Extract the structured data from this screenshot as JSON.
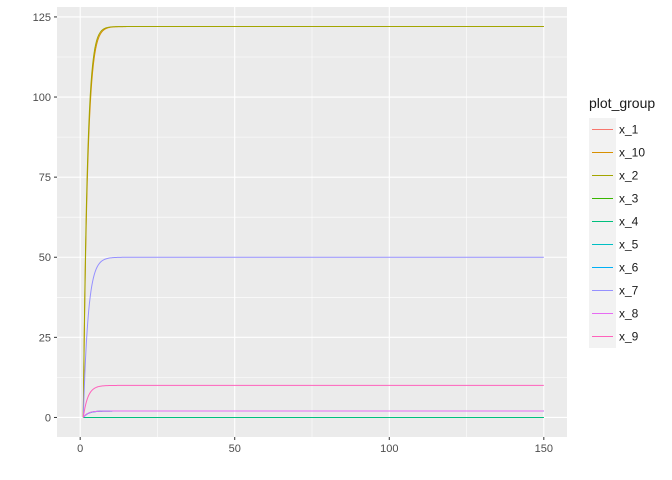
{
  "chart_data": {
    "type": "line",
    "title": "",
    "xlabel": "",
    "ylabel": "",
    "xlim": [
      -7.5,
      157.5
    ],
    "ylim": [
      -6.1,
      128.1
    ],
    "x_ticks": [
      0,
      50,
      100,
      150
    ],
    "x_tick_labels": [
      "0",
      "50",
      "100",
      "150"
    ],
    "y_ticks": [
      0,
      25,
      50,
      75,
      100,
      125
    ],
    "y_tick_labels": [
      "0",
      "25",
      "50",
      "75",
      "100",
      "125"
    ],
    "grid": true,
    "legend": {
      "title": "plot_group",
      "position": "right"
    },
    "x_range": [
      1,
      150
    ],
    "series": [
      {
        "name": "x_1",
        "color": "#F8766D",
        "start": 0,
        "plateau": 2,
        "tau": 1.5
      },
      {
        "name": "x_10",
        "color": "#D89000",
        "start": 0,
        "plateau": 122,
        "tau": 1.4
      },
      {
        "name": "x_2",
        "color": "#A3A500",
        "start": 0,
        "plateau": 122,
        "tau": 1.3
      },
      {
        "name": "x_3",
        "color": "#39B600",
        "start": 0,
        "plateau": 0,
        "tau": 1.5
      },
      {
        "name": "x_4",
        "color": "#00BF7D",
        "start": 0,
        "plateau": 0,
        "tau": 1.5
      },
      {
        "name": "x_5",
        "color": "#00BFC4",
        "start": 0,
        "plateau": 2,
        "tau": 1.6
      },
      {
        "name": "x_6",
        "color": "#00B0F6",
        "start": 0,
        "plateau": 2,
        "tau": 1.6
      },
      {
        "name": "x_7",
        "color": "#9590FF",
        "start": 0,
        "plateau": 50,
        "tau": 1.6
      },
      {
        "name": "x_8",
        "color": "#E76BF3",
        "start": 0,
        "plateau": 2,
        "tau": 1.5
      },
      {
        "name": "x_9",
        "color": "#FF62BC",
        "start": 0,
        "plateau": 10,
        "tau": 1.5
      }
    ],
    "colors": {
      "panel_background": "#EBEBEB",
      "grid_major": "#FFFFFF",
      "legend_key_background": "#F2F2F2"
    }
  }
}
